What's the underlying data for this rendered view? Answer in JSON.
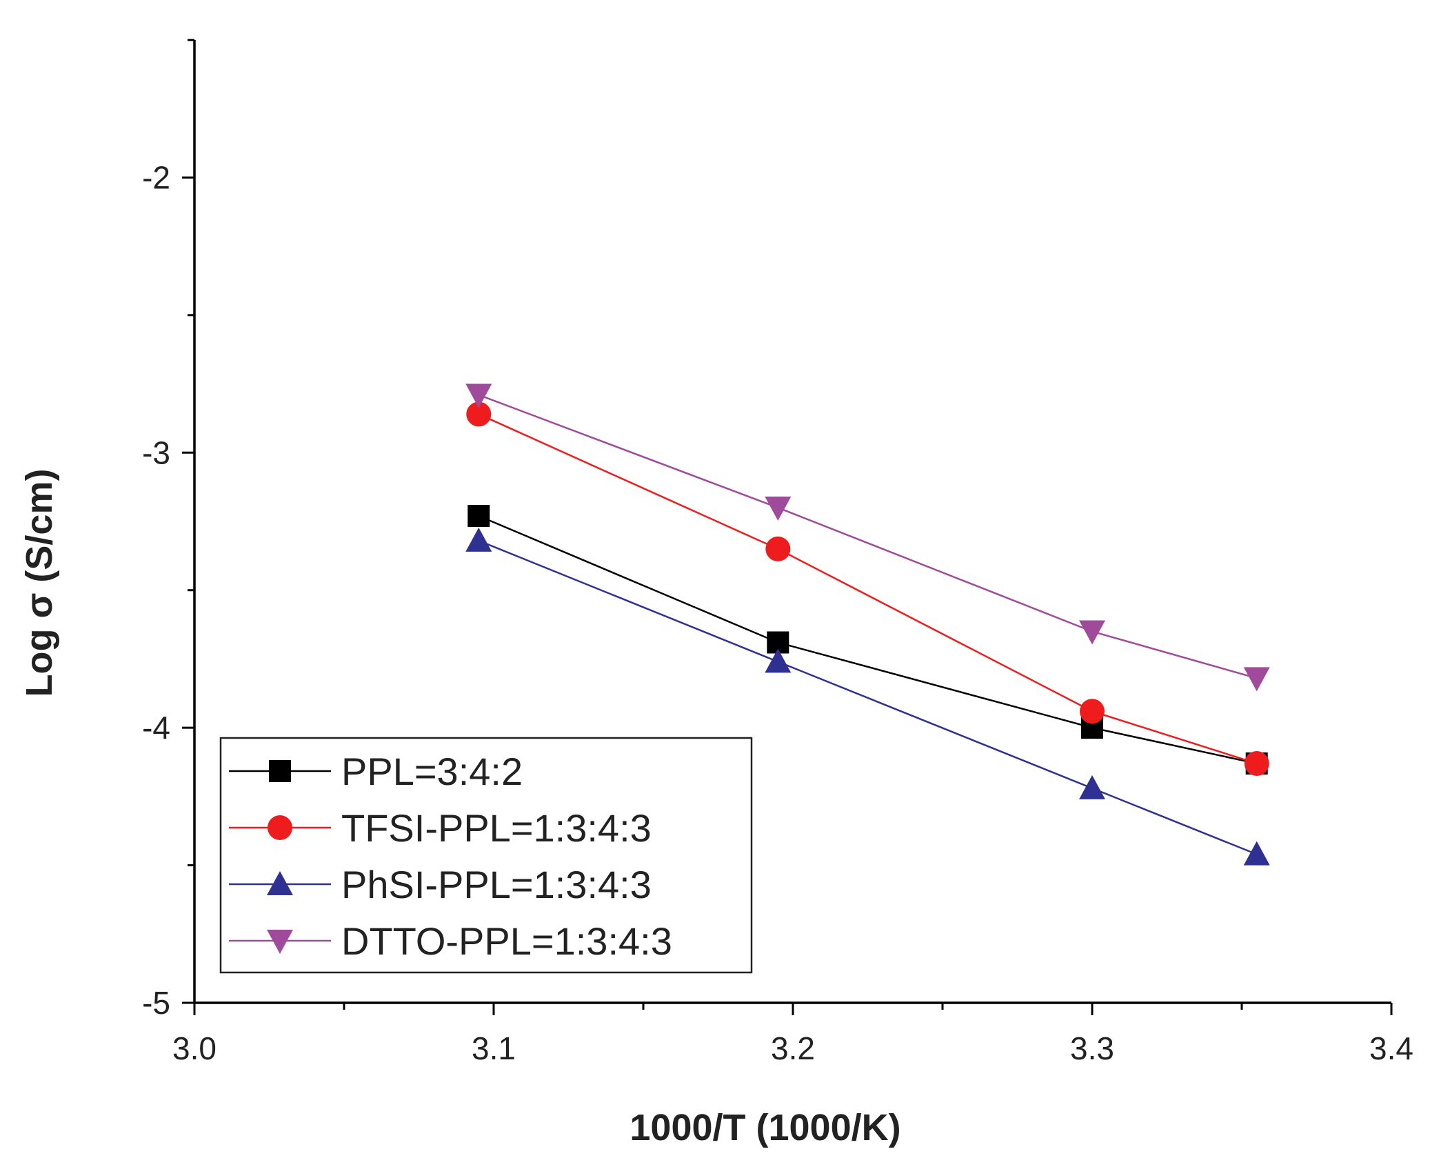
{
  "chart_data": {
    "type": "line",
    "title": "",
    "xlabel": "1000/T (1000/K)",
    "ylabel": "Log σ (S/cm)",
    "xlim": [
      3.0,
      3.4
    ],
    "ylim": [
      -5,
      -1.5
    ],
    "x_ticks": [
      3.0,
      3.1,
      3.2,
      3.3,
      3.4
    ],
    "x_tick_labels": [
      "3.0",
      "3.1",
      "3.2",
      "3.3",
      "3.4"
    ],
    "x_minor_ticks": [
      3.05,
      3.15,
      3.25,
      3.35
    ],
    "y_ticks": [
      -5,
      -4,
      -3,
      -2
    ],
    "y_tick_labels": [
      "-5",
      "-4",
      "-3",
      "-2"
    ],
    "y_minor_ticks": [
      -4.5,
      -3.5,
      -2.5,
      -1.5
    ],
    "grid": false,
    "legend_position": "bottom-left",
    "x": [
      3.095,
      3.195,
      3.3,
      3.355
    ],
    "series": [
      {
        "name": "PPL=3:4:2",
        "color": "#000000",
        "marker": "square",
        "values": [
          -3.23,
          -3.69,
          -4.0,
          -4.13
        ]
      },
      {
        "name": "TFSI-PPL=1:3:4:3",
        "color": "#ee1c1c",
        "marker": "circle",
        "values": [
          -2.86,
          -3.35,
          -3.94,
          -4.13
        ]
      },
      {
        "name": "PhSI-PPL=1:3:4:3",
        "color": "#2e3192",
        "marker": "triangle-up",
        "values": [
          -3.32,
          -3.76,
          -4.22,
          -4.46
        ]
      },
      {
        "name": "DTTO-PPL=1:3:4:3",
        "color": "#a04a9c",
        "marker": "triangle-down",
        "values": [
          -2.79,
          -3.2,
          -3.65,
          -3.82
        ]
      }
    ]
  }
}
